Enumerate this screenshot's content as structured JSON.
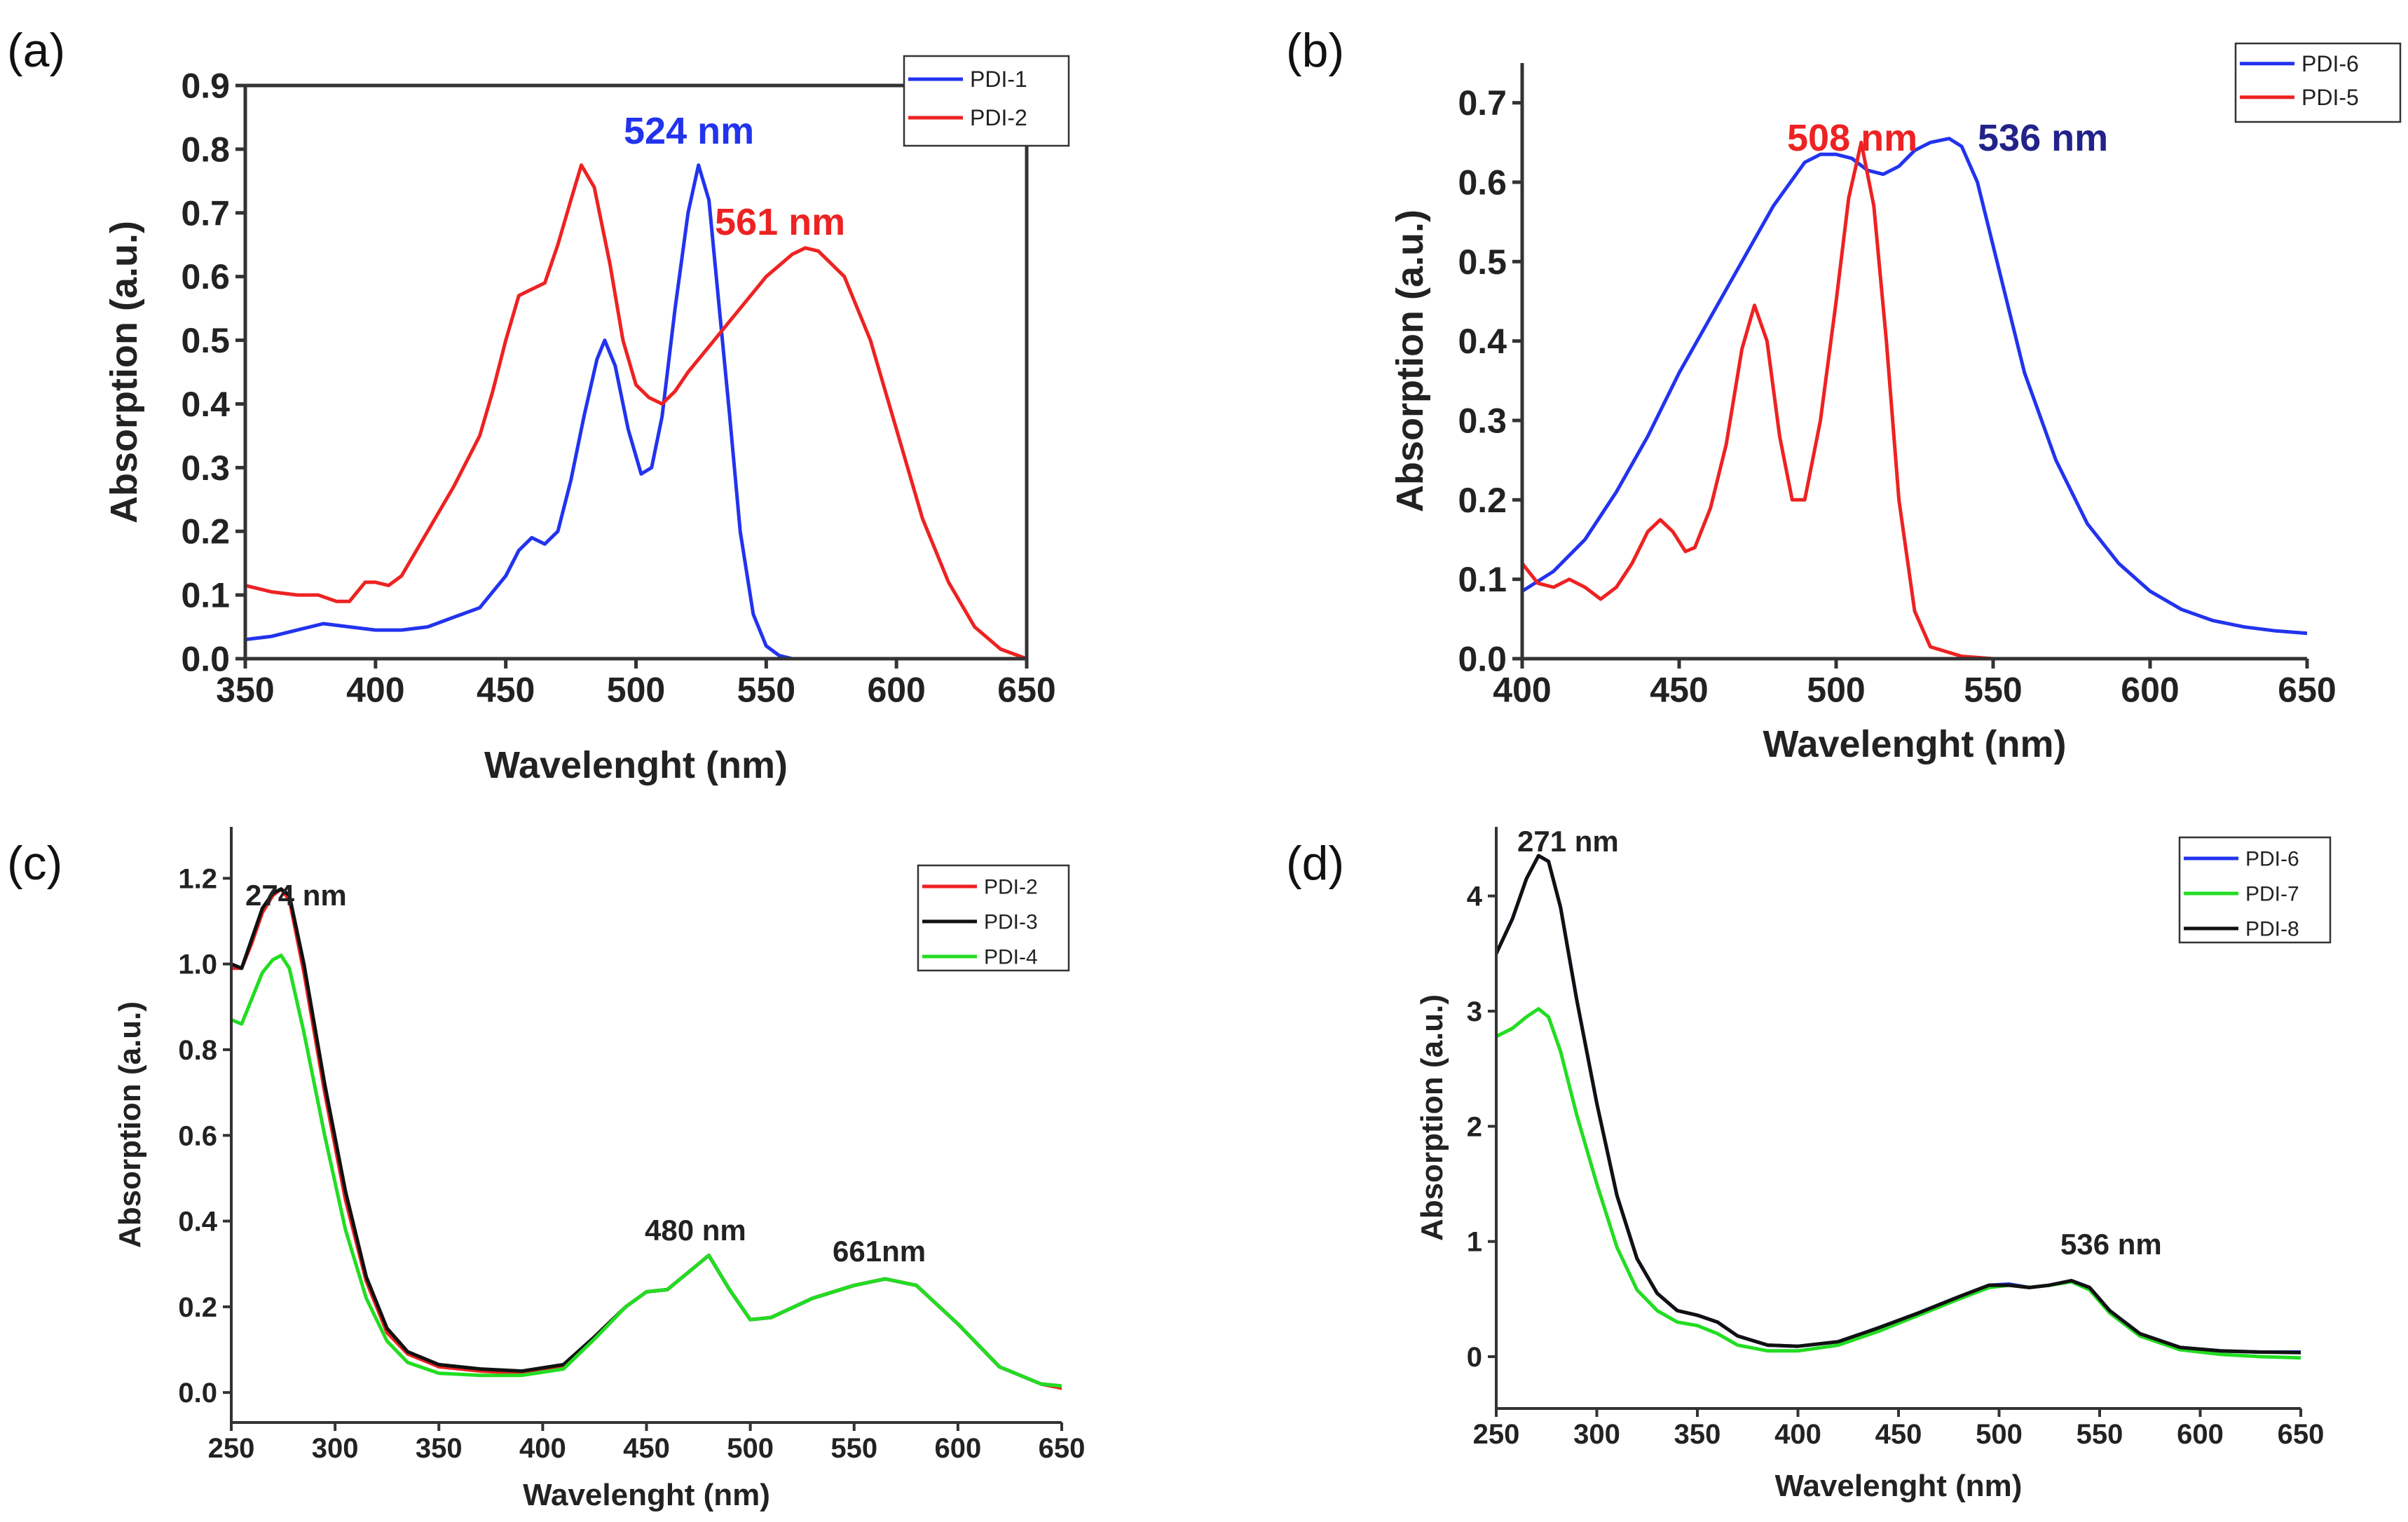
{
  "chart_data": [
    {
      "type": "line",
      "panel_label": "(a)",
      "xlabel": "Wavelenght (nm)",
      "ylabel": "Absorption (a.u.)",
      "xlim": [
        350,
        650
      ],
      "ylim": [
        0,
        0.9
      ],
      "xticks": [
        350,
        400,
        450,
        500,
        550,
        600,
        650
      ],
      "xtick_labels": [
        "350",
        "400",
        "450",
        "500",
        "550",
        "600",
        "650"
      ],
      "yticks": [
        0,
        0.1,
        0.2,
        0.3,
        0.4,
        0.5,
        0.6,
        0.7,
        0.8,
        0.9
      ],
      "ytick_labels": [
        "0.0",
        "0.1",
        "0.2",
        "0.3",
        "0.4",
        "0.5",
        "0.6",
        "0.7",
        "0.8",
        "0.9"
      ],
      "legend_position": "top-right",
      "series": [
        {
          "name": "PDI-1",
          "color": "#2233ee",
          "x": [
            350,
            360,
            370,
            380,
            390,
            400,
            410,
            420,
            430,
            440,
            450,
            455,
            460,
            465,
            470,
            475,
            480,
            485,
            488,
            492,
            497,
            502,
            506,
            510,
            515,
            520,
            524,
            528,
            532,
            536,
            540,
            545,
            550,
            555,
            560
          ],
          "y": [
            0.03,
            0.035,
            0.045,
            0.055,
            0.05,
            0.045,
            0.045,
            0.05,
            0.065,
            0.08,
            0.13,
            0.17,
            0.19,
            0.18,
            0.2,
            0.28,
            0.38,
            0.47,
            0.5,
            0.46,
            0.36,
            0.29,
            0.3,
            0.38,
            0.55,
            0.7,
            0.775,
            0.72,
            0.55,
            0.38,
            0.2,
            0.07,
            0.02,
            0.005,
            0.0
          ]
        },
        {
          "name": "PDI-2",
          "color": "#ee2222",
          "x": [
            350,
            360,
            370,
            378,
            385,
            390,
            396,
            400,
            405,
            410,
            420,
            430,
            440,
            445,
            450,
            455,
            460,
            465,
            470,
            475,
            479,
            484,
            490,
            495,
            500,
            505,
            510,
            515,
            520,
            530,
            540,
            550,
            560,
            565,
            570,
            580,
            590,
            600,
            610,
            620,
            630,
            640,
            650
          ],
          "y": [
            0.115,
            0.105,
            0.1,
            0.1,
            0.09,
            0.09,
            0.12,
            0.12,
            0.115,
            0.13,
            0.2,
            0.27,
            0.35,
            0.42,
            0.5,
            0.57,
            0.58,
            0.59,
            0.65,
            0.72,
            0.775,
            0.74,
            0.62,
            0.5,
            0.43,
            0.41,
            0.4,
            0.42,
            0.45,
            0.5,
            0.55,
            0.6,
            0.635,
            0.645,
            0.64,
            0.6,
            0.5,
            0.36,
            0.22,
            0.12,
            0.05,
            0.015,
            0.0
          ]
        }
      ],
      "annotations": [
        {
          "text": "524 nm",
          "color": "#2233ee"
        },
        {
          "text": "561 nm",
          "color": "#ee2222"
        }
      ]
    },
    {
      "type": "line",
      "panel_label": "(b)",
      "xlabel": "Wavelenght (nm)",
      "ylabel": "Absorption (a.u.)",
      "xlim": [
        400,
        650
      ],
      "ylim": [
        0,
        0.75
      ],
      "xticks": [
        400,
        450,
        500,
        550,
        600,
        650
      ],
      "xtick_labels": [
        "400",
        "450",
        "500",
        "550",
        "600",
        "650"
      ],
      "yticks": [
        0,
        0.1,
        0.2,
        0.3,
        0.4,
        0.5,
        0.6,
        0.7
      ],
      "ytick_labels": [
        "0.0",
        "0.1",
        "0.2",
        "0.3",
        "0.4",
        "0.5",
        "0.6",
        "0.7"
      ],
      "legend_position": "top-right",
      "series": [
        {
          "name": "PDI-6",
          "color": "#2233ee",
          "x": [
            400,
            410,
            420,
            430,
            440,
            450,
            460,
            470,
            480,
            490,
            495,
            500,
            505,
            510,
            515,
            520,
            525,
            530,
            536,
            540,
            545,
            550,
            555,
            560,
            570,
            580,
            590,
            600,
            610,
            620,
            630,
            640,
            650
          ],
          "y": [
            0.085,
            0.11,
            0.15,
            0.21,
            0.28,
            0.36,
            0.43,
            0.5,
            0.57,
            0.625,
            0.635,
            0.635,
            0.63,
            0.615,
            0.61,
            0.62,
            0.64,
            0.65,
            0.655,
            0.645,
            0.6,
            0.52,
            0.44,
            0.36,
            0.25,
            0.17,
            0.12,
            0.085,
            0.062,
            0.048,
            0.04,
            0.035,
            0.032
          ]
        },
        {
          "name": "PDI-5",
          "color": "#ee2222",
          "x": [
            400,
            405,
            410,
            415,
            420,
            425,
            430,
            435,
            440,
            444,
            448,
            452,
            455,
            460,
            465,
            470,
            474,
            478,
            482,
            486,
            490,
            495,
            500,
            504,
            508,
            512,
            516,
            520,
            525,
            530,
            540,
            550,
            600,
            650
          ],
          "y": [
            0.12,
            0.095,
            0.09,
            0.1,
            0.09,
            0.075,
            0.09,
            0.12,
            0.16,
            0.175,
            0.16,
            0.135,
            0.14,
            0.19,
            0.27,
            0.39,
            0.445,
            0.4,
            0.28,
            0.2,
            0.2,
            0.3,
            0.45,
            0.58,
            0.65,
            0.57,
            0.4,
            0.2,
            0.06,
            0.015,
            0.003,
            0.0,
            0.0,
            0.0
          ]
        }
      ],
      "annotations": [
        {
          "text": "508 nm",
          "color": "#ee2222"
        },
        {
          "text": "536 nm",
          "color": "#22228a"
        }
      ]
    },
    {
      "type": "line",
      "panel_label": "(c)",
      "xlabel": "Wavelenght (nm)",
      "ylabel": "Absorption (a.u.)",
      "xlim": [
        250,
        650
      ],
      "ylim": [
        -0.07,
        1.32
      ],
      "xticks": [
        250,
        300,
        350,
        400,
        450,
        500,
        550,
        600,
        650
      ],
      "xtick_labels": [
        "250",
        "300",
        "350",
        "400",
        "450",
        "500",
        "550",
        "600",
        "650"
      ],
      "yticks": [
        0,
        0.2,
        0.4,
        0.6,
        0.8,
        1.0,
        1.2
      ],
      "ytick_labels": [
        "0.0",
        "0.2",
        "0.4",
        "0.6",
        "0.8",
        "1.0",
        "1.2"
      ],
      "legend_position": "top-right",
      "series": [
        {
          "name": "PDI-2",
          "color": "#ee2222",
          "x": [
            250,
            255,
            260,
            265,
            270,
            274,
            278,
            285,
            295,
            305,
            315,
            325,
            335,
            350,
            370,
            390,
            410,
            425,
            440,
            450,
            460,
            470,
            480,
            490,
            500,
            510,
            530,
            550,
            565,
            580,
            600,
            620,
            640,
            650
          ],
          "y": [
            0.99,
            0.99,
            1.05,
            1.12,
            1.16,
            1.175,
            1.15,
            0.98,
            0.7,
            0.45,
            0.26,
            0.14,
            0.09,
            0.06,
            0.05,
            0.045,
            0.06,
            0.13,
            0.2,
            0.235,
            0.24,
            0.28,
            0.32,
            0.24,
            0.17,
            0.175,
            0.22,
            0.25,
            0.265,
            0.25,
            0.16,
            0.06,
            0.02,
            0.01
          ]
        },
        {
          "name": "PDI-3",
          "color": "#111111",
          "x": [
            250,
            255,
            260,
            265,
            270,
            274,
            278,
            285,
            295,
            305,
            315,
            325,
            335,
            350,
            370,
            390,
            410,
            425,
            440,
            450,
            460,
            470,
            480,
            490,
            500,
            510,
            530,
            550,
            565,
            580,
            600,
            620,
            640,
            650
          ],
          "y": [
            1.0,
            0.99,
            1.06,
            1.13,
            1.165,
            1.175,
            1.16,
            1.0,
            0.72,
            0.47,
            0.27,
            0.15,
            0.095,
            0.065,
            0.055,
            0.05,
            0.065,
            0.13,
            0.2,
            0.235,
            0.24,
            0.28,
            0.32,
            0.24,
            0.17,
            0.175,
            0.22,
            0.25,
            0.265,
            0.25,
            0.16,
            0.06,
            0.02,
            0.015
          ]
        },
        {
          "name": "PDI-4",
          "color": "#22dd22",
          "x": [
            250,
            255,
            260,
            265,
            270,
            274,
            278,
            285,
            295,
            305,
            315,
            325,
            335,
            350,
            370,
            390,
            410,
            425,
            440,
            450,
            460,
            470,
            480,
            490,
            500,
            510,
            530,
            550,
            565,
            580,
            600,
            620,
            640,
            650
          ],
          "y": [
            0.87,
            0.86,
            0.92,
            0.98,
            1.01,
            1.02,
            0.99,
            0.84,
            0.6,
            0.38,
            0.22,
            0.12,
            0.07,
            0.045,
            0.04,
            0.04,
            0.055,
            0.125,
            0.2,
            0.235,
            0.24,
            0.28,
            0.32,
            0.24,
            0.17,
            0.175,
            0.22,
            0.25,
            0.265,
            0.25,
            0.16,
            0.06,
            0.02,
            0.015
          ]
        }
      ],
      "annotations": [
        {
          "text": "274 nm",
          "color": "#222222"
        },
        {
          "text": "480 nm",
          "color": "#222222"
        },
        {
          "text": "661nm",
          "color": "#222222"
        }
      ]
    },
    {
      "type": "line",
      "panel_label": "(d)",
      "xlabel": "Wavelenght (nm)",
      "ylabel": "Absorption (a.u.)",
      "xlim": [
        250,
        650
      ],
      "ylim": [
        -0.45,
        4.6
      ],
      "xticks": [
        250,
        300,
        350,
        400,
        450,
        500,
        550,
        600,
        650
      ],
      "xtick_labels": [
        "250",
        "300",
        "350",
        "400",
        "450",
        "500",
        "550",
        "600",
        "650"
      ],
      "yticks": [
        0,
        1,
        2,
        3,
        4
      ],
      "ytick_labels": [
        "0",
        "1",
        "2",
        "3",
        "4"
      ],
      "legend_position": "top-right",
      "series": [
        {
          "name": "PDI-6",
          "color": "#2233ee",
          "x": [
            250,
            258,
            265,
            271,
            276,
            282,
            290,
            300,
            310,
            320,
            330,
            340,
            350,
            360,
            370,
            385,
            400,
            420,
            440,
            460,
            480,
            495,
            505,
            515,
            525,
            536,
            545,
            555,
            570,
            590,
            610,
            630,
            650
          ],
          "y": [
            3.5,
            3.8,
            4.15,
            4.35,
            4.3,
            3.9,
            3.1,
            2.2,
            1.4,
            0.85,
            0.55,
            0.4,
            0.36,
            0.3,
            0.18,
            0.1,
            0.09,
            0.13,
            0.25,
            0.38,
            0.52,
            0.62,
            0.63,
            0.6,
            0.62,
            0.66,
            0.6,
            0.4,
            0.2,
            0.08,
            0.05,
            0.04,
            0.04
          ]
        },
        {
          "name": "PDI-7",
          "color": "#22dd22",
          "x": [
            250,
            258,
            265,
            271,
            276,
            282,
            290,
            300,
            310,
            320,
            330,
            340,
            350,
            360,
            370,
            385,
            400,
            420,
            440,
            460,
            480,
            495,
            505,
            515,
            525,
            536,
            545,
            555,
            570,
            590,
            610,
            630,
            650
          ],
          "y": [
            2.78,
            2.85,
            2.95,
            3.02,
            2.95,
            2.65,
            2.1,
            1.5,
            0.95,
            0.58,
            0.4,
            0.3,
            0.27,
            0.2,
            0.1,
            0.05,
            0.05,
            0.1,
            0.22,
            0.36,
            0.5,
            0.6,
            0.62,
            0.6,
            0.62,
            0.65,
            0.58,
            0.38,
            0.18,
            0.06,
            0.02,
            0.0,
            -0.01
          ]
        },
        {
          "name": "PDI-8",
          "color": "#111111",
          "x": [
            250,
            258,
            265,
            271,
            276,
            282,
            290,
            300,
            310,
            320,
            330,
            340,
            350,
            360,
            370,
            385,
            400,
            420,
            440,
            460,
            480,
            495,
            505,
            515,
            525,
            536,
            545,
            555,
            570,
            590,
            610,
            630,
            650
          ],
          "y": [
            3.5,
            3.8,
            4.15,
            4.35,
            4.3,
            3.9,
            3.1,
            2.2,
            1.4,
            0.85,
            0.55,
            0.4,
            0.36,
            0.3,
            0.18,
            0.1,
            0.09,
            0.13,
            0.25,
            0.38,
            0.52,
            0.62,
            0.62,
            0.6,
            0.62,
            0.66,
            0.6,
            0.4,
            0.2,
            0.08,
            0.05,
            0.04,
            0.035
          ]
        }
      ],
      "annotations": [
        {
          "text": "271 nm",
          "color": "#222222"
        },
        {
          "text": "536 nm",
          "color": "#222222"
        }
      ]
    }
  ]
}
